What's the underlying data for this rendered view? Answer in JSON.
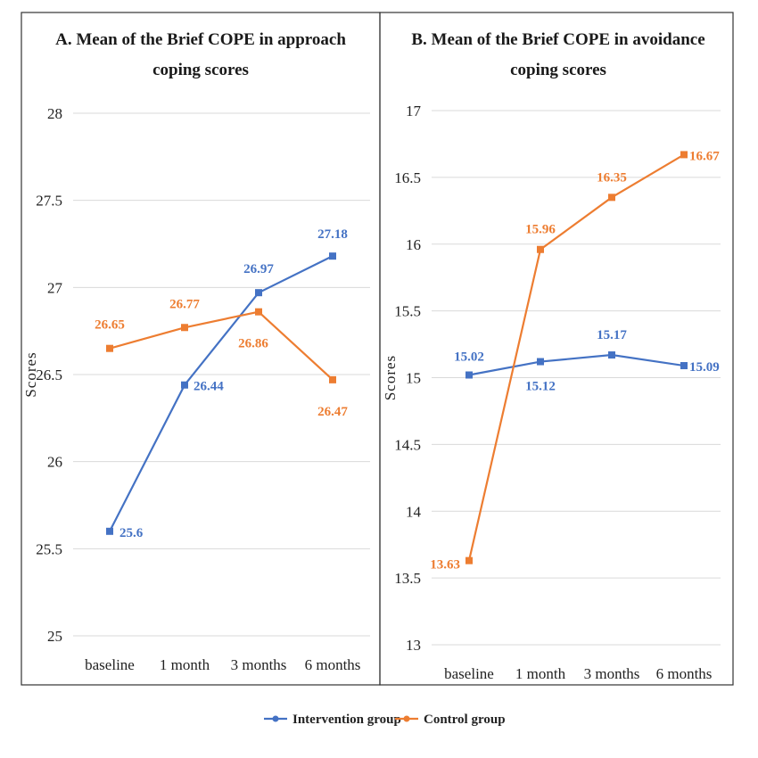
{
  "chart_data": [
    {
      "type": "line",
      "title_lines": [
        "A. Mean of the Brief COPE in approach",
        "coping scores"
      ],
      "xlabel": "",
      "ylabel": "Scores",
      "categories": [
        "baseline",
        "1 month",
        "3 months",
        "6 months"
      ],
      "ylim": [
        25,
        28
      ],
      "yticks": [
        "25",
        "25.5",
        "26",
        "26.5",
        "27",
        "27.5",
        "28"
      ],
      "grid": true,
      "series": [
        {
          "name": "Intervention group",
          "color": "#4472C4",
          "values": [
            25.6,
            26.44,
            26.97,
            27.18
          ],
          "labels": [
            "25.6",
            "26.44",
            "26.97",
            "27.18"
          ]
        },
        {
          "name": "Control group",
          "color": "#ED7D31",
          "values": [
            26.65,
            26.77,
            26.86,
            26.47
          ],
          "labels": [
            "26.65",
            "26.77",
            "26.86",
            "26.47"
          ]
        }
      ]
    },
    {
      "type": "line",
      "title_lines": [
        "B. Mean of the Brief COPE in  avoidance",
        "coping scores"
      ],
      "xlabel": "",
      "ylabel": "Scores",
      "categories": [
        "baseline",
        "1 month",
        "3 months",
        "6 months"
      ],
      "ylim": [
        13,
        17
      ],
      "yticks": [
        "13",
        "13.5",
        "14",
        "14.5",
        "15",
        "15.5",
        "16",
        "16.5",
        "17"
      ],
      "grid": true,
      "series": [
        {
          "name": "Intervention group",
          "color": "#4472C4",
          "values": [
            15.02,
            15.12,
            15.17,
            15.09
          ],
          "labels": [
            "15.02",
            "15.12",
            "15.17",
            "15.09"
          ]
        },
        {
          "name": "Control group",
          "color": "#ED7D31",
          "values": [
            13.63,
            15.96,
            16.35,
            16.67
          ],
          "labels": [
            "13.63",
            "15.96",
            "16.35",
            "16.67"
          ]
        }
      ]
    }
  ],
  "legend": {
    "position": "bottom-center",
    "items": [
      {
        "label": "Intervention group",
        "color": "#4472C4"
      },
      {
        "label": "Control group",
        "color": "#ED7D31"
      }
    ]
  }
}
